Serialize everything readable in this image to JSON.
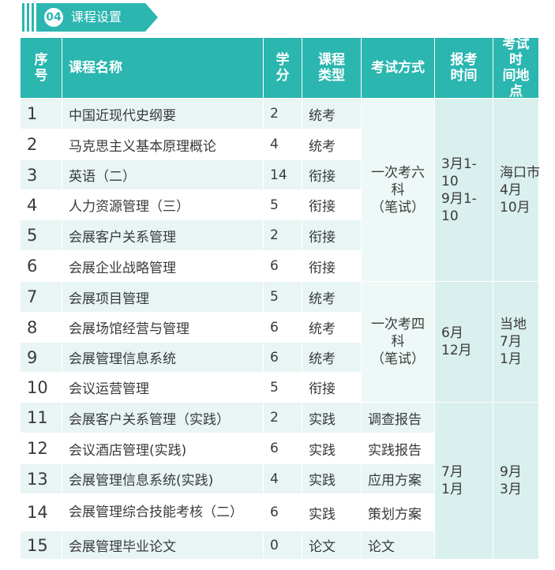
{
  "section": {
    "number": "04",
    "title": "课程设置"
  },
  "headers": {
    "seq": [
      "序",
      "号"
    ],
    "name": "课程名称",
    "credit": [
      "学",
      "分"
    ],
    "type": [
      "课程",
      "类型"
    ],
    "exam": "考试方式",
    "reg": [
      "报考",
      "时间"
    ],
    "loc": [
      "考试时",
      "间地点"
    ]
  },
  "rows": [
    {
      "no": "1",
      "name": "中国近现代史纲要",
      "credit": "2",
      "type": "统考"
    },
    {
      "no": "2",
      "name": "马克思主义基本原理概论",
      "credit": "4",
      "type": "统考"
    },
    {
      "no": "3",
      "name": "英语（二）",
      "credit": "14",
      "type": "衔接"
    },
    {
      "no": "4",
      "name": "人力资源管理（三）",
      "credit": "5",
      "type": "衔接"
    },
    {
      "no": "5",
      "name": "会展客户关系管理",
      "credit": "2",
      "type": "衔接"
    },
    {
      "no": "6",
      "name": "会展企业战略管理",
      "credit": "6",
      "type": "衔接"
    },
    {
      "no": "7",
      "name": "会展项目管理",
      "credit": "5",
      "type": "统考"
    },
    {
      "no": "8",
      "name": "会展场馆经营与管理",
      "credit": "6",
      "type": "统考"
    },
    {
      "no": "9",
      "name": "会展管理信息系统",
      "credit": "6",
      "type": "统考"
    },
    {
      "no": "10",
      "name": "会议运营管理",
      "credit": "5",
      "type": "衔接"
    },
    {
      "no": "11",
      "name": "会展客户关系管理（实践）",
      "credit": "2",
      "type": "实践",
      "exam": "调查报告"
    },
    {
      "no": "12",
      "name": "会议酒店管理(实践)",
      "credit": "6",
      "type": "实践",
      "exam": "实践报告"
    },
    {
      "no": "13",
      "name": "会展管理信息系统(实践)",
      "credit": "4",
      "type": "实践",
      "exam": "应用方案"
    },
    {
      "no": "14",
      "name": "会展管理综合技能考核（二）",
      "credit": "6",
      "type": "实践",
      "exam": "策划方案"
    },
    {
      "no": "15",
      "name": "会展管理毕业论文",
      "credit": "0",
      "type": "论文",
      "exam": "论文"
    }
  ],
  "groups": [
    {
      "exam": [
        "一次考六",
        "科",
        "（笔试）"
      ],
      "reg": [
        "3月1-",
        "10",
        "9月1-",
        "10"
      ],
      "loc": [
        "海口市",
        "4月",
        "10月"
      ]
    },
    {
      "exam": [
        "一次考四",
        "科",
        "（笔试）"
      ],
      "reg": [
        "6月",
        "12月"
      ],
      "loc": [
        "当地",
        "7月",
        "1月"
      ]
    },
    {
      "reg": [
        "7月",
        "1月"
      ],
      "loc": [
        "9月",
        "3月"
      ]
    }
  ]
}
